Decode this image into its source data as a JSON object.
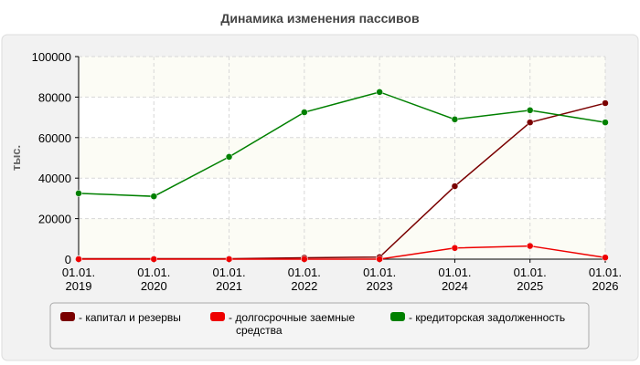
{
  "chart_data": {
    "type": "line",
    "title": "Динамика изменения пассивов",
    "ylabel": "тыс.",
    "xlabel": "",
    "ylim": [
      0,
      100000
    ],
    "yticks": [
      0,
      20000,
      40000,
      60000,
      80000,
      100000
    ],
    "grid": true,
    "legend_position": "bottom",
    "categories": [
      [
        "01.01.",
        "2019"
      ],
      [
        "01.01.",
        "2020"
      ],
      [
        "01.01.",
        "2021"
      ],
      [
        "01.01.",
        "2022"
      ],
      [
        "01.01.",
        "2023"
      ],
      [
        "01.01.",
        "2024"
      ],
      [
        "01.01.",
        "2025"
      ],
      [
        "01.01.",
        "2026"
      ]
    ],
    "series": [
      {
        "name": "капитал и резервы",
        "color": "#7a0000",
        "values": [
          200,
          200,
          200,
          700,
          1000,
          36000,
          67500,
          77000
        ]
      },
      {
        "name": "долгосрочные заемные средства",
        "legend_lines": [
          "долгосрочные заемные",
          "средства"
        ],
        "color": "#ee0000",
        "values": [
          0,
          0,
          0,
          0,
          0,
          5500,
          6500,
          800
        ]
      },
      {
        "name": "кредиторская задолженность",
        "color": "#008000",
        "values": [
          32500,
          31000,
          50500,
          72500,
          82500,
          69000,
          73500,
          67500
        ]
      }
    ]
  }
}
